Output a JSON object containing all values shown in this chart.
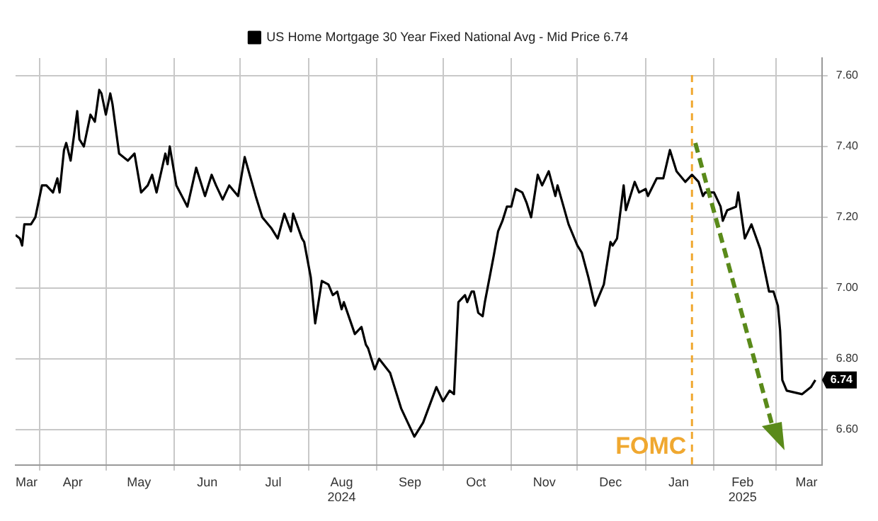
{
  "chart_data": {
    "type": "line",
    "x": [
      "2024-03-21",
      "2024-03-23",
      "2024-03-24",
      "2024-03-25",
      "2024-03-28",
      "2024-03-30",
      "2024-04-02",
      "2024-04-04",
      "2024-04-07",
      "2024-04-09",
      "2024-04-10",
      "2024-04-12",
      "2024-04-13",
      "2024-04-15",
      "2024-04-18",
      "2024-04-19",
      "2024-04-21",
      "2024-04-24",
      "2024-04-26",
      "2024-04-28",
      "2024-04-29",
      "2024-05-01",
      "2024-05-03",
      "2024-05-04",
      "2024-05-07",
      "2024-05-11",
      "2024-05-14",
      "2024-05-17",
      "2024-05-20",
      "2024-05-22",
      "2024-05-24",
      "2024-05-28",
      "2024-05-29",
      "2024-05-30",
      "2024-06-02",
      "2024-06-07",
      "2024-06-11",
      "2024-06-14",
      "2024-06-15",
      "2024-06-18",
      "2024-06-20",
      "2024-06-23",
      "2024-06-26",
      "2024-06-30",
      "2024-07-03",
      "2024-07-08",
      "2024-07-11",
      "2024-07-15",
      "2024-07-18",
      "2024-07-21",
      "2024-07-24",
      "2024-07-25",
      "2024-07-29",
      "2024-07-30",
      "2024-08-02",
      "2024-08-04",
      "2024-08-07",
      "2024-08-10",
      "2024-08-12",
      "2024-08-14",
      "2024-08-16",
      "2024-08-17",
      "2024-08-22",
      "2024-08-25",
      "2024-08-27",
      "2024-08-28",
      "2024-08-31",
      "2024-09-02",
      "2024-09-07",
      "2024-09-12",
      "2024-09-15",
      "2024-09-18",
      "2024-09-22",
      "2024-09-25",
      "2024-09-28",
      "2024-10-01",
      "2024-10-04",
      "2024-10-06",
      "2024-10-08",
      "2024-10-11",
      "2024-10-12",
      "2024-10-14",
      "2024-10-15",
      "2024-10-17",
      "2024-10-19",
      "2024-10-20",
      "2024-10-24",
      "2024-10-26",
      "2024-10-28",
      "2024-10-30",
      "2024-11-01",
      "2024-11-03",
      "2024-11-06",
      "2024-11-08",
      "2024-11-10",
      "2024-11-13",
      "2024-11-15",
      "2024-11-18",
      "2024-11-21",
      "2024-11-22",
      "2024-11-27",
      "2024-12-01",
      "2024-12-03",
      "2024-12-06",
      "2024-12-09",
      "2024-12-13",
      "2024-12-16",
      "2024-12-17",
      "2024-12-19",
      "2024-12-22",
      "2024-12-23",
      "2024-12-27",
      "2024-12-29",
      "2025-01-01",
      "2025-01-02",
      "2025-01-06",
      "2025-01-09",
      "2025-01-12",
      "2025-01-15",
      "2025-01-19",
      "2025-01-22",
      "2025-01-25",
      "2025-01-27",
      "2025-01-28",
      "2025-02-01",
      "2025-02-04",
      "2025-02-05",
      "2025-02-07",
      "2025-02-11",
      "2025-02-12",
      "2025-02-15",
      "2025-02-18",
      "2025-02-22",
      "2025-02-26",
      "2025-02-28",
      "2025-03-02",
      "2025-03-03",
      "2025-03-04",
      "2025-03-06",
      "2025-03-13",
      "2025-03-17",
      "2025-03-19"
    ],
    "series": [
      {
        "name": "US Home Mortgage 30 Year Fixed National Avg - Mid Price 6.74",
        "color": "#000000",
        "values": [
          7.15,
          7.14,
          7.12,
          7.18,
          7.18,
          7.2,
          7.29,
          7.29,
          7.27,
          7.31,
          7.27,
          7.39,
          7.41,
          7.36,
          7.5,
          7.42,
          7.4,
          7.49,
          7.47,
          7.56,
          7.55,
          7.49,
          7.55,
          7.52,
          7.38,
          7.36,
          7.38,
          7.27,
          7.29,
          7.32,
          7.27,
          7.38,
          7.35,
          7.4,
          7.29,
          7.23,
          7.34,
          7.28,
          7.26,
          7.32,
          7.29,
          7.25,
          7.29,
          7.26,
          7.37,
          7.26,
          7.2,
          7.17,
          7.14,
          7.21,
          7.16,
          7.21,
          7.14,
          7.13,
          7.03,
          6.9,
          7.02,
          7.01,
          6.98,
          6.99,
          6.94,
          6.96,
          6.87,
          6.89,
          6.84,
          6.83,
          6.77,
          6.8,
          6.76,
          6.66,
          6.62,
          6.58,
          6.62,
          6.67,
          6.72,
          6.68,
          6.71,
          6.7,
          6.96,
          6.98,
          6.96,
          6.99,
          6.99,
          6.93,
          6.92,
          6.96,
          7.09,
          7.16,
          7.19,
          7.23,
          7.23,
          7.28,
          7.27,
          7.24,
          7.2,
          7.32,
          7.29,
          7.33,
          7.26,
          7.29,
          7.18,
          7.12,
          7.1,
          7.03,
          6.95,
          7.01,
          7.13,
          7.12,
          7.14,
          7.29,
          7.22,
          7.3,
          7.27,
          7.28,
          7.26,
          7.31,
          7.31,
          7.39,
          7.33,
          7.3,
          7.32,
          7.3,
          7.26,
          7.27,
          7.27,
          7.23,
          7.19,
          7.22,
          7.23,
          7.27,
          7.14,
          7.18,
          7.11,
          6.99,
          6.99,
          6.95,
          6.88,
          6.74,
          6.71,
          6.7,
          6.72,
          6.74
        ]
      }
    ],
    "xlim": [
      "2024-03-21",
      "2025-03-22"
    ],
    "xticks": [
      {
        "value": "2024-03-26",
        "label": "Mar"
      },
      {
        "value": "2024-04-01",
        "label": null
      },
      {
        "value": "2024-04-16",
        "label": "Apr"
      },
      {
        "value": "2024-05-01",
        "label": null
      },
      {
        "value": "2024-05-16",
        "label": "May"
      },
      {
        "value": "2024-06-01",
        "label": null
      },
      {
        "value": "2024-06-16",
        "label": "Jun"
      },
      {
        "value": "2024-07-01",
        "label": null
      },
      {
        "value": "2024-07-16",
        "label": "Jul"
      },
      {
        "value": "2024-08-01",
        "label": null
      },
      {
        "value": "2024-08-16",
        "label": "Aug\n2024"
      },
      {
        "value": "2024-09-01",
        "label": null
      },
      {
        "value": "2024-09-16",
        "label": "Sep"
      },
      {
        "value": "2024-10-01",
        "label": null
      },
      {
        "value": "2024-10-16",
        "label": "Oct"
      },
      {
        "value": "2024-11-01",
        "label": null
      },
      {
        "value": "2024-11-16",
        "label": "Nov"
      },
      {
        "value": "2024-12-01",
        "label": null
      },
      {
        "value": "2024-12-16",
        "label": "Dec"
      },
      {
        "value": "2025-01-01",
        "label": null
      },
      {
        "value": "2025-01-16",
        "label": "Jan"
      },
      {
        "value": "2025-02-01",
        "label": null
      },
      {
        "value": "2025-02-14",
        "label": "Feb\n2025"
      },
      {
        "value": "2025-03-01",
        "label": null
      },
      {
        "value": "2025-03-15",
        "label": "Mar"
      }
    ],
    "ylim": [
      6.5,
      7.65
    ],
    "yticks": [
      {
        "value": 6.6,
        "label": "6.60"
      },
      {
        "value": 6.8,
        "label": "6.80"
      },
      {
        "value": 7.0,
        "label": "7.00"
      },
      {
        "value": 7.2,
        "label": "7.20"
      },
      {
        "value": 7.4,
        "label": "7.40"
      },
      {
        "value": 7.6,
        "label": "7.60"
      }
    ],
    "ref_lines": [
      {
        "axis": "x",
        "value": "2025-01-22",
        "label": "FOMC",
        "color": "#f0a830",
        "line_style": "dashed"
      }
    ],
    "annotations": [
      {
        "text": "6.74",
        "x": "2025-03-19",
        "y": 6.74
      }
    ],
    "grid": true,
    "legend": "top",
    "marker": "none",
    "line_style": "solid"
  }
}
